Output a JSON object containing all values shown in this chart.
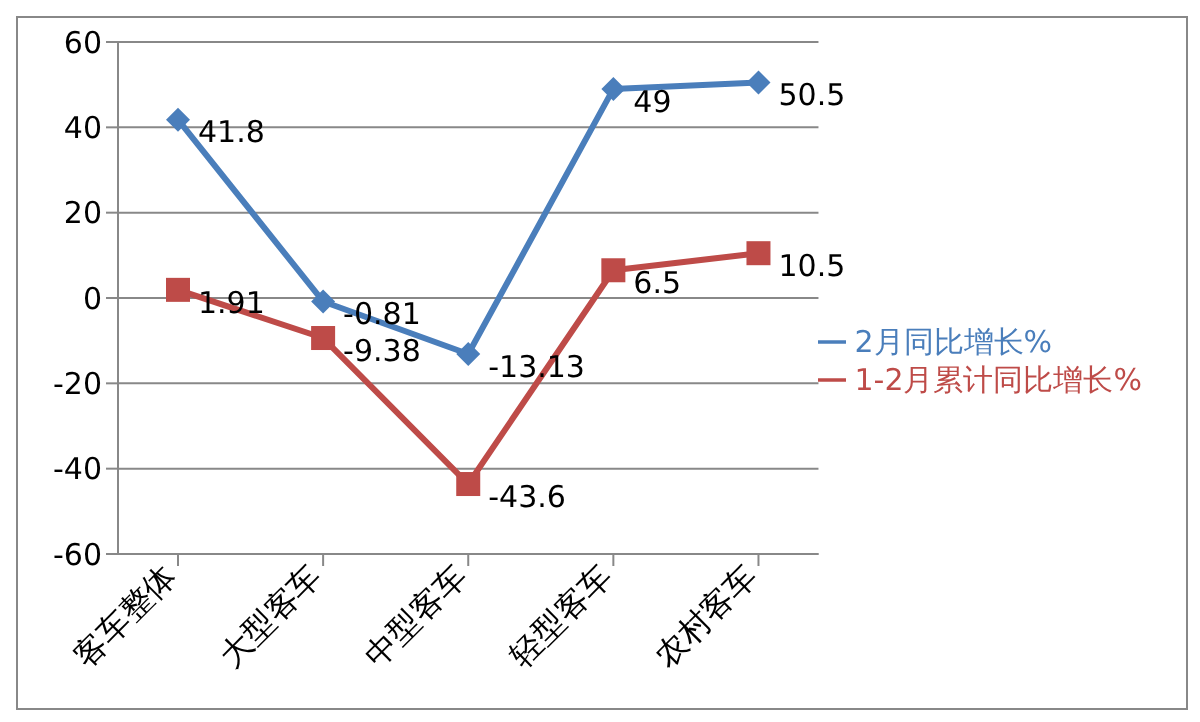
{
  "chart_data": {
    "type": "line",
    "categories": [
      "客车整体",
      "大型客车",
      "中型客车",
      "轻型客车",
      "农村客车"
    ],
    "series": [
      {
        "name": "2月同比增长%",
        "color": "#4a7ebb",
        "marker": "diamond",
        "values": [
          41.8,
          -0.81,
          -13.13,
          49,
          50.5
        ]
      },
      {
        "name": "1-2月累计同比增长%",
        "color": "#be4b48",
        "marker": "square",
        "values": [
          1.91,
          -9.38,
          -43.6,
          6.5,
          10.5
        ]
      }
    ],
    "ylim": [
      -60,
      60
    ],
    "yticks": [
      -60,
      -40,
      -20,
      0,
      20,
      40,
      60
    ],
    "grid": "y",
    "legend": "right",
    "data_labels": true
  }
}
